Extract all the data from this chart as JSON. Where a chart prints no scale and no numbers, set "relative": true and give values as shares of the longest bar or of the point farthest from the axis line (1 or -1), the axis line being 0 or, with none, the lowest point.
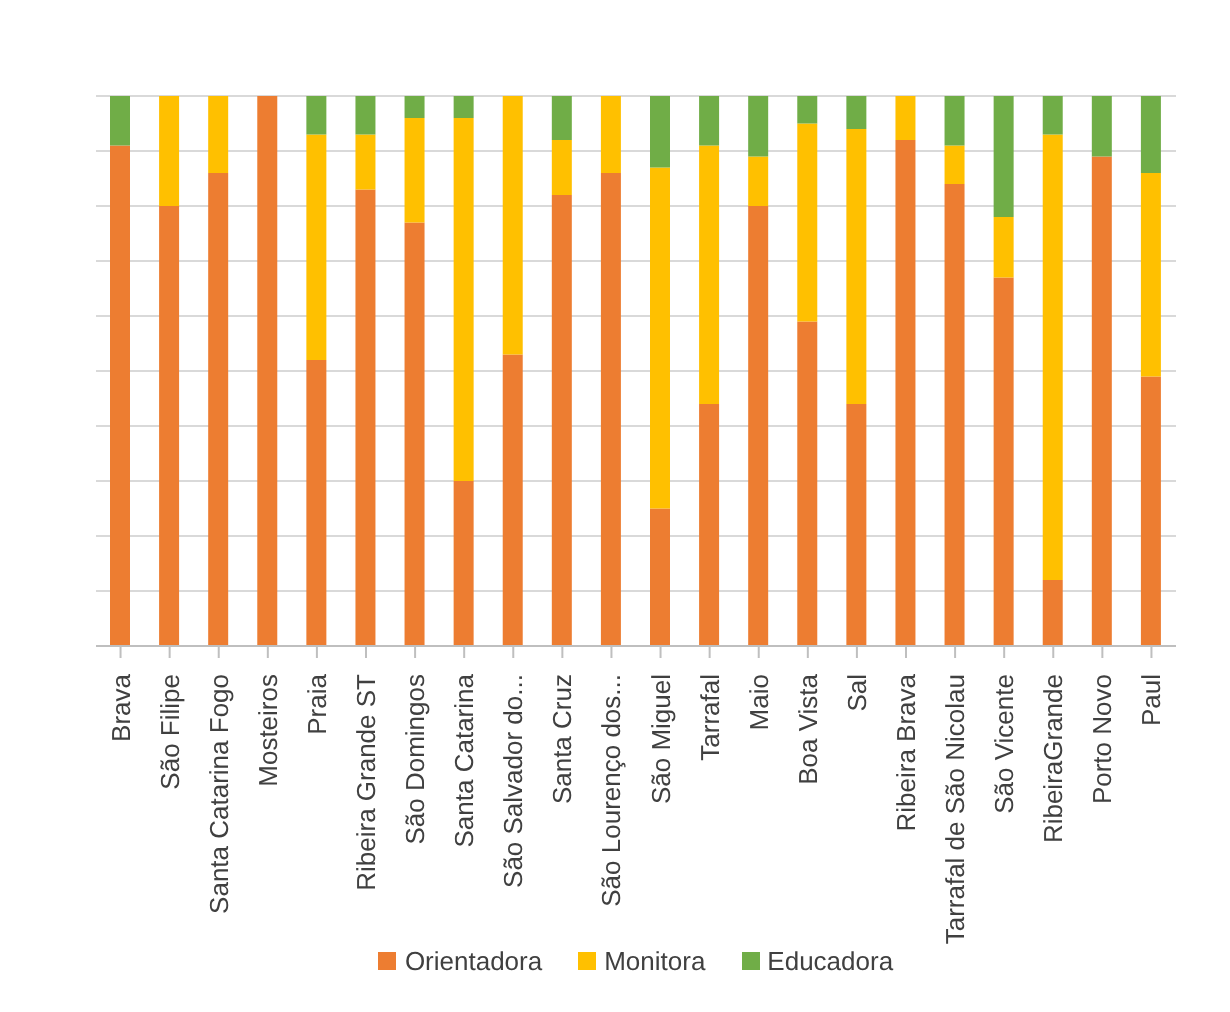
{
  "chart_data": {
    "type": "bar",
    "stacked": true,
    "relative": true,
    "grid": "y",
    "legend": "bottom",
    "categories": [
      "Brava",
      "São Filipe",
      "Santa Catarina Fogo",
      "Mosteiros",
      "Praia",
      "Ribeira Grande ST",
      "São Domingos",
      "Santa Catarina",
      "São Salvador do...",
      "Santa Cruz",
      "São Lourenço dos...",
      "São Miguel",
      "Tarrafal",
      "Maio",
      "Boa Vista",
      "Sal",
      "Ribeira Brava",
      "Tarrafal de São Nicolau",
      "São Vicente",
      "RibeiraGrande",
      "Porto Novo",
      "Paul"
    ],
    "series": [
      {
        "name": "Orientadora",
        "color": "#ed7d31",
        "values": [
          0.91,
          0.8,
          0.86,
          1.0,
          0.52,
          0.83,
          0.77,
          0.3,
          0.53,
          0.82,
          0.86,
          0.25,
          0.44,
          0.8,
          0.59,
          0.44,
          0.92,
          0.84,
          0.67,
          0.12,
          0.89,
          0.49
        ]
      },
      {
        "name": "Monitora",
        "color": "#ffc000",
        "values": [
          0,
          0.2,
          0.14,
          0,
          0.41,
          0.1,
          0.19,
          0.66,
          0.47,
          0.1,
          0.14,
          0.62,
          0.47,
          0.09,
          0.36,
          0.5,
          0.08,
          0.07,
          0.11,
          0.81,
          0,
          0.37
        ]
      },
      {
        "name": "Educadora",
        "color": "#70ad47",
        "values": [
          0.09,
          0,
          0,
          0,
          0.07,
          0.07,
          0.04,
          0.04,
          0,
          0.08,
          0,
          0.13,
          0.09,
          0.11,
          0.05,
          0.06,
          0,
          0.09,
          0.22,
          0.07,
          0.11,
          0.14
        ]
      }
    ]
  }
}
